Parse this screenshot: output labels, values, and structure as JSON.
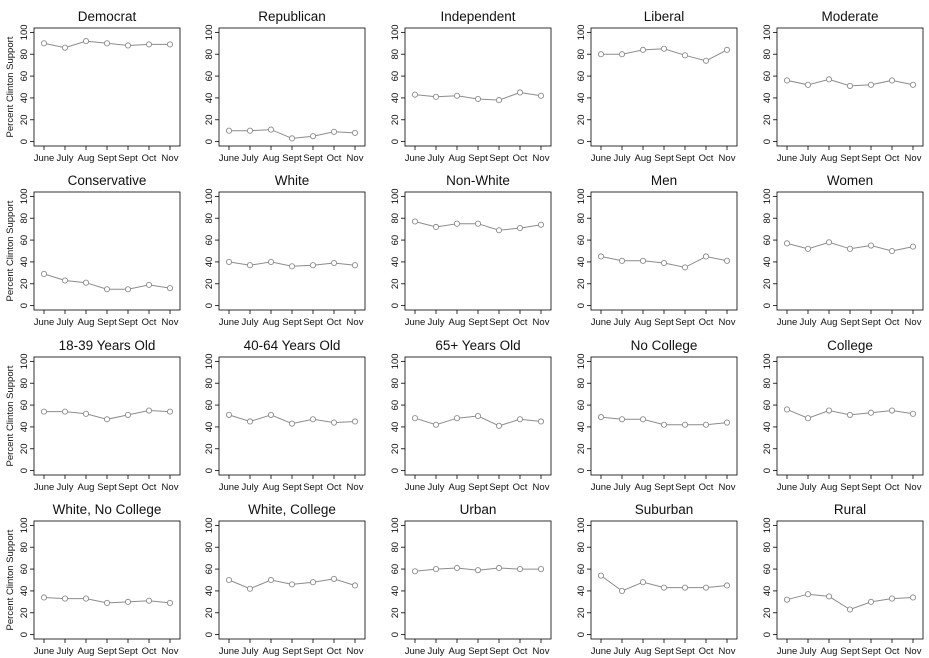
{
  "y_axis_label": "Percent Clinton Support",
  "months": [
    "June",
    "July",
    "Aug",
    "Sept",
    "Sept",
    "Oct",
    "Nov"
  ],
  "y_ticks": [
    0,
    20,
    40,
    60,
    80,
    100
  ],
  "colors": {
    "line": "#8c8c8c",
    "marker": "#8c8c8c",
    "frame": "#000000"
  },
  "chart_data": [
    {
      "type": "line",
      "title": "Democrat",
      "values": [
        90,
        86,
        92,
        90,
        88,
        89,
        89
      ],
      "ylim": [
        0,
        100
      ]
    },
    {
      "type": "line",
      "title": "Republican",
      "values": [
        10,
        10,
        11,
        3,
        5,
        9,
        8
      ],
      "ylim": [
        0,
        100
      ]
    },
    {
      "type": "line",
      "title": "Independent",
      "values": [
        43,
        41,
        42,
        39,
        38,
        45,
        42
      ],
      "ylim": [
        0,
        100
      ]
    },
    {
      "type": "line",
      "title": "Liberal",
      "values": [
        80,
        80,
        84,
        85,
        79,
        74,
        84
      ],
      "ylim": [
        0,
        100
      ]
    },
    {
      "type": "line",
      "title": "Moderate",
      "values": [
        56,
        52,
        57,
        51,
        52,
        56,
        52
      ],
      "ylim": [
        0,
        100
      ]
    },
    {
      "type": "line",
      "title": "Conservative",
      "values": [
        29,
        23,
        21,
        15,
        15,
        19,
        16
      ],
      "ylim": [
        0,
        100
      ]
    },
    {
      "type": "line",
      "title": "White",
      "values": [
        40,
        37,
        40,
        36,
        37,
        39,
        37
      ],
      "ylim": [
        0,
        100
      ]
    },
    {
      "type": "line",
      "title": "Non-White",
      "values": [
        77,
        72,
        75,
        75,
        69,
        71,
        74
      ],
      "ylim": [
        0,
        100
      ]
    },
    {
      "type": "line",
      "title": "Men",
      "values": [
        45,
        41,
        41,
        39,
        35,
        45,
        41
      ],
      "ylim": [
        0,
        100
      ]
    },
    {
      "type": "line",
      "title": "Women",
      "values": [
        57,
        52,
        58,
        52,
        55,
        50,
        54
      ],
      "ylim": [
        0,
        100
      ]
    },
    {
      "type": "line",
      "title": "18-39 Years Old",
      "values": [
        54,
        54,
        52,
        47,
        51,
        55,
        54
      ],
      "ylim": [
        0,
        100
      ]
    },
    {
      "type": "line",
      "title": "40-64 Years Old",
      "values": [
        51,
        45,
        51,
        43,
        47,
        44,
        45
      ],
      "ylim": [
        0,
        100
      ]
    },
    {
      "type": "line",
      "title": "65+ Years Old",
      "values": [
        48,
        42,
        48,
        50,
        41,
        47,
        45
      ],
      "ylim": [
        0,
        100
      ]
    },
    {
      "type": "line",
      "title": "No College",
      "values": [
        49,
        47,
        47,
        42,
        42,
        42,
        44
      ],
      "ylim": [
        0,
        100
      ]
    },
    {
      "type": "line",
      "title": "College",
      "values": [
        56,
        48,
        55,
        51,
        53,
        55,
        52
      ],
      "ylim": [
        0,
        100
      ]
    },
    {
      "type": "line",
      "title": "White, No College",
      "values": [
        34,
        33,
        33,
        29,
        30,
        31,
        29
      ],
      "ylim": [
        0,
        100
      ]
    },
    {
      "type": "line",
      "title": "White, College",
      "values": [
        50,
        42,
        50,
        46,
        48,
        51,
        45
      ],
      "ylim": [
        0,
        100
      ]
    },
    {
      "type": "line",
      "title": "Urban",
      "values": [
        58,
        60,
        61,
        59,
        61,
        60,
        60
      ],
      "ylim": [
        0,
        100
      ]
    },
    {
      "type": "line",
      "title": "Suburban",
      "values": [
        54,
        40,
        48,
        43,
        43,
        43,
        45
      ],
      "ylim": [
        0,
        100
      ]
    },
    {
      "type": "line",
      "title": "Rural",
      "values": [
        32,
        37,
        35,
        23,
        30,
        33,
        34
      ],
      "ylim": [
        0,
        100
      ]
    }
  ]
}
